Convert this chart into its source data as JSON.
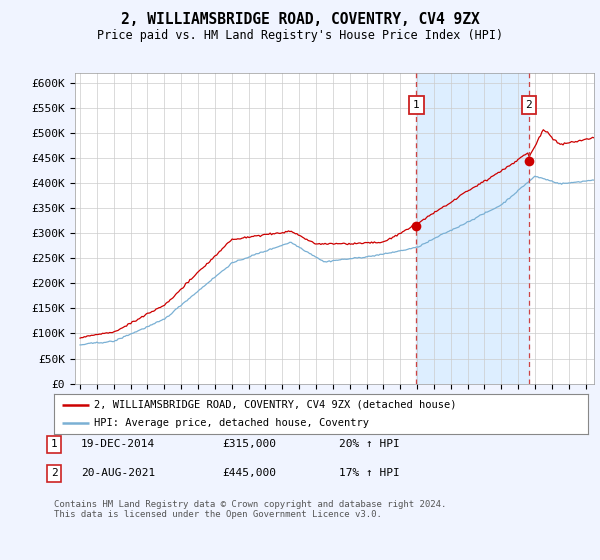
{
  "title": "2, WILLIAMSBRIDGE ROAD, COVENTRY, CV4 9ZX",
  "subtitle": "Price paid vs. HM Land Registry's House Price Index (HPI)",
  "ylabel_ticks": [
    "£0",
    "£50K",
    "£100K",
    "£150K",
    "£200K",
    "£250K",
    "£300K",
    "£350K",
    "£400K",
    "£450K",
    "£500K",
    "£550K",
    "£600K"
  ],
  "ytick_values": [
    0,
    50000,
    100000,
    150000,
    200000,
    250000,
    300000,
    350000,
    400000,
    450000,
    500000,
    550000,
    600000
  ],
  "ylim": [
    0,
    620000
  ],
  "xlim_start": 1994.7,
  "xlim_end": 2025.5,
  "legend_house": "2, WILLIAMSBRIDGE ROAD, COVENTRY, CV4 9ZX (detached house)",
  "legend_hpi": "HPI: Average price, detached house, Coventry",
  "annotation1_label": "1",
  "annotation1_date": "19-DEC-2014",
  "annotation1_price": "£315,000",
  "annotation1_hpi": "20% ↑ HPI",
  "annotation2_label": "2",
  "annotation2_date": "20-AUG-2021",
  "annotation2_price": "£445,000",
  "annotation2_hpi": "17% ↑ HPI",
  "footer": "Contains HM Land Registry data © Crown copyright and database right 2024.\nThis data is licensed under the Open Government Licence v3.0.",
  "sale1_x": 2014.96,
  "sale1_y": 315000,
  "sale2_x": 2021.63,
  "sale2_y": 445000,
  "house_color": "#cc0000",
  "hpi_color": "#7ab0d4",
  "background_color": "#f0f4ff",
  "plot_bg": "#ffffff",
  "shade_color": "#ddeeff",
  "dashed_color": "#cc4444",
  "number_box_color": "#cc2222"
}
